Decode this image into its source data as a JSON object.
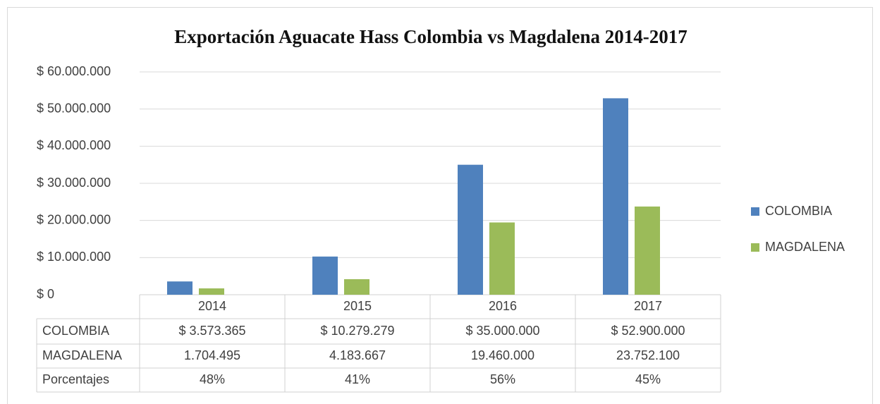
{
  "chart_data": {
    "type": "bar",
    "title": "Exportación Aguacate Hass Colombia vs Magdalena 2014-2017",
    "categories": [
      "2014",
      "2015",
      "2016",
      "2017"
    ],
    "series": [
      {
        "name": "COLOMBIA",
        "color": "#4f81bd",
        "values": [
          3573365,
          10279279,
          35000000,
          52900000
        ],
        "value_labels": [
          "$ 3.573.365",
          "$ 10.279.279",
          "$ 35.000.000",
          "$ 52.900.000"
        ]
      },
      {
        "name": "MAGDALENA",
        "color": "#9bbb59",
        "values": [
          1704495,
          4183667,
          19460000,
          23752100
        ],
        "value_labels": [
          "1.704.495",
          "4.183.667",
          "19.460.000",
          "23.752.100"
        ]
      }
    ],
    "table_rows": [
      {
        "name": "Porcentajes",
        "values": [
          48,
          41,
          56,
          45
        ],
        "value_labels": [
          "48%",
          "41%",
          "56%",
          "45%"
        ]
      }
    ],
    "ylim": [
      0,
      60000000
    ],
    "yticks": [
      {
        "value": 0,
        "label": "$ 0"
      },
      {
        "value": 10000000,
        "label": "$ 10.000.000"
      },
      {
        "value": 20000000,
        "label": "$ 20.000.000"
      },
      {
        "value": 30000000,
        "label": "$ 30.000.000"
      },
      {
        "value": 40000000,
        "label": "$ 40.000.000"
      },
      {
        "value": 50000000,
        "label": "$ 50.000.000"
      },
      {
        "value": 60000000,
        "label": "$ 60.000.000"
      }
    ],
    "grid": true,
    "legend": "right"
  }
}
